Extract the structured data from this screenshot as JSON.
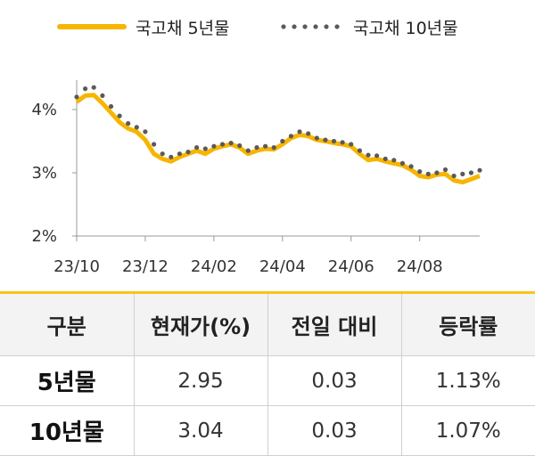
{
  "colors": {
    "five_year": "#f7b500",
    "ten_year": "#5a5a5a",
    "table_accent": "#f5c518"
  },
  "legend": {
    "five_year": "국고채 5년물",
    "ten_year": "국고채 10년물"
  },
  "chart_data": {
    "type": "line",
    "x_tick_labels": [
      "23/10",
      "23/12",
      "24/02",
      "24/04",
      "24/06",
      "24/08"
    ],
    "y_tick_labels": [
      "4%",
      "3%",
      "2%"
    ],
    "ylim": [
      2,
      4.2
    ],
    "grid": false,
    "x": [
      "23/10",
      "23/10",
      "23/10",
      "23/10",
      "23/11",
      "23/11",
      "23/11",
      "23/11",
      "23/12",
      "23/12",
      "23/12",
      "23/12",
      "24/01",
      "24/01",
      "24/01",
      "24/01",
      "24/02",
      "24/02",
      "24/02",
      "24/02",
      "24/03",
      "24/03",
      "24/03",
      "24/03",
      "24/04",
      "24/04",
      "24/04",
      "24/04",
      "24/05",
      "24/05",
      "24/05",
      "24/05",
      "24/06",
      "24/06",
      "24/06",
      "24/06",
      "24/07",
      "24/07",
      "24/07",
      "24/07",
      "24/08",
      "24/08",
      "24/08",
      "24/08",
      "24/09",
      "24/09",
      "24/09",
      "24/09"
    ],
    "series": [
      {
        "name": "국고채 5년물",
        "style": "line",
        "values": [
          4.12,
          4.22,
          4.23,
          4.1,
          3.95,
          3.8,
          3.7,
          3.65,
          3.52,
          3.3,
          3.22,
          3.18,
          3.25,
          3.3,
          3.35,
          3.3,
          3.38,
          3.42,
          3.45,
          3.4,
          3.3,
          3.35,
          3.38,
          3.37,
          3.45,
          3.55,
          3.6,
          3.58,
          3.52,
          3.5,
          3.47,
          3.45,
          3.42,
          3.3,
          3.2,
          3.22,
          3.18,
          3.15,
          3.12,
          3.05,
          2.95,
          2.93,
          2.97,
          2.98,
          2.88,
          2.85,
          2.9,
          2.95
        ]
      },
      {
        "name": "국고채 10년물",
        "style": "dots",
        "values": [
          4.2,
          4.33,
          4.35,
          4.22,
          4.05,
          3.9,
          3.78,
          3.72,
          3.65,
          3.45,
          3.3,
          3.25,
          3.3,
          3.33,
          3.4,
          3.38,
          3.42,
          3.45,
          3.47,
          3.43,
          3.35,
          3.4,
          3.42,
          3.4,
          3.5,
          3.58,
          3.65,
          3.62,
          3.55,
          3.52,
          3.5,
          3.48,
          3.45,
          3.35,
          3.28,
          3.27,
          3.22,
          3.2,
          3.15,
          3.1,
          3.02,
          2.98,
          3.0,
          3.05,
          2.95,
          2.98,
          3.0,
          3.04
        ]
      }
    ]
  },
  "table": {
    "headers": [
      "구분",
      "현재가(%)",
      "전일 대비",
      "등락률"
    ],
    "rows": [
      {
        "label": "5년물",
        "current": "2.95",
        "change": "0.03",
        "rate": "1.13%"
      },
      {
        "label": "10년물",
        "current": "3.04",
        "change": "0.03",
        "rate": "1.07%"
      }
    ]
  }
}
